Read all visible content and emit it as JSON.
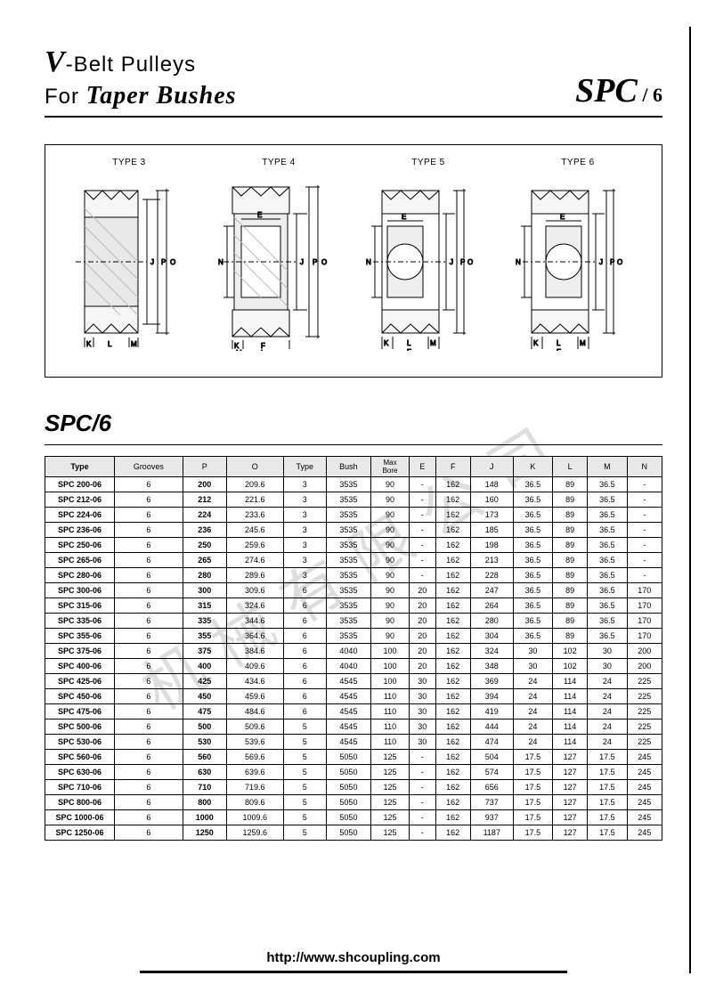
{
  "header": {
    "title_line1_prefix": "V",
    "title_line1_rest": "-Belt Pulleys",
    "title_line2_prefix": "For ",
    "title_line2_italic": "Taper Bushes",
    "right_spc": "SPC",
    "right_suffix": " / 6"
  },
  "diagram_labels": [
    "TYPE 3",
    "TYPE 4",
    "TYPE 5",
    "TYPE 6"
  ],
  "section_title": "SPC/6",
  "table": {
    "headers": [
      "Type",
      "Grooves",
      "P",
      "O",
      "Type",
      "Bush",
      "Max Bore",
      "E",
      "F",
      "J",
      "K",
      "L",
      "M",
      "N"
    ],
    "col_count": 14,
    "header_bg": "#e8e8e8",
    "border_color": "#000000",
    "font_size": 9,
    "rows": [
      [
        "SPC 200-06",
        "6",
        "200",
        "209.6",
        "3",
        "3535",
        "90",
        "-",
        "162",
        "148",
        "36.5",
        "89",
        "36.5",
        "-"
      ],
      [
        "SPC 212-06",
        "6",
        "212",
        "221.6",
        "3",
        "3535",
        "90",
        "-",
        "162",
        "160",
        "36.5",
        "89",
        "36.5",
        "-"
      ],
      [
        "SPC 224-06",
        "6",
        "224",
        "233.6",
        "3",
        "3535",
        "90",
        "-",
        "162",
        "173",
        "36.5",
        "89",
        "36.5",
        "-"
      ],
      [
        "SPC 236-06",
        "6",
        "236",
        "245.6",
        "3",
        "3535",
        "90",
        "-",
        "162",
        "185",
        "36.5",
        "89",
        "36.5",
        "-"
      ],
      [
        "SPC 250-06",
        "6",
        "250",
        "259.6",
        "3",
        "3535",
        "90",
        "-",
        "162",
        "198",
        "36.5",
        "89",
        "36.5",
        "-"
      ],
      [
        "SPC 265-06",
        "6",
        "265",
        "274.6",
        "3",
        "3535",
        "90",
        "-",
        "162",
        "213",
        "36.5",
        "89",
        "36.5",
        "-"
      ],
      [
        "SPC 280-06",
        "6",
        "280",
        "289.6",
        "3",
        "3535",
        "90",
        "-",
        "162",
        "228",
        "36.5",
        "89",
        "36.5",
        "-"
      ],
      [
        "SPC 300-06",
        "6",
        "300",
        "309.6",
        "6",
        "3535",
        "90",
        "20",
        "162",
        "247",
        "36.5",
        "89",
        "36.5",
        "170"
      ],
      [
        "SPC 315-06",
        "6",
        "315",
        "324.6",
        "6",
        "3535",
        "90",
        "20",
        "162",
        "264",
        "36.5",
        "89",
        "36.5",
        "170"
      ],
      [
        "SPC 335-06",
        "6",
        "335",
        "344.6",
        "6",
        "3535",
        "90",
        "20",
        "162",
        "280",
        "36.5",
        "89",
        "36.5",
        "170"
      ],
      [
        "SPC 355-06",
        "6",
        "355",
        "364.6",
        "6",
        "3535",
        "90",
        "20",
        "162",
        "304",
        "36.5",
        "89",
        "36.5",
        "170"
      ],
      [
        "SPC 375-06",
        "6",
        "375",
        "384.6",
        "6",
        "4040",
        "100",
        "20",
        "162",
        "324",
        "30",
        "102",
        "30",
        "200"
      ],
      [
        "SPC 400-06",
        "6",
        "400",
        "409.6",
        "6",
        "4040",
        "100",
        "20",
        "162",
        "348",
        "30",
        "102",
        "30",
        "200"
      ],
      [
        "SPC 425-06",
        "6",
        "425",
        "434.6",
        "6",
        "4545",
        "100",
        "30",
        "162",
        "369",
        "24",
        "114",
        "24",
        "225"
      ],
      [
        "SPC 450-06",
        "6",
        "450",
        "459.6",
        "6",
        "4545",
        "110",
        "30",
        "162",
        "394",
        "24",
        "114",
        "24",
        "225"
      ],
      [
        "SPC 475-06",
        "6",
        "475",
        "484.6",
        "6",
        "4545",
        "110",
        "30",
        "162",
        "419",
        "24",
        "114",
        "24",
        "225"
      ],
      [
        "SPC 500-06",
        "6",
        "500",
        "509.6",
        "5",
        "4545",
        "110",
        "30",
        "162",
        "444",
        "24",
        "114",
        "24",
        "225"
      ],
      [
        "SPC 530-06",
        "6",
        "530",
        "539.6",
        "5",
        "4545",
        "110",
        "30",
        "162",
        "474",
        "24",
        "114",
        "24",
        "225"
      ],
      [
        "SPC 560-06",
        "6",
        "560",
        "569.6",
        "5",
        "5050",
        "125",
        "-",
        "162",
        "504",
        "17.5",
        "127",
        "17.5",
        "245"
      ],
      [
        "SPC 630-06",
        "6",
        "630",
        "639.6",
        "5",
        "5050",
        "125",
        "-",
        "162",
        "574",
        "17.5",
        "127",
        "17.5",
        "245"
      ],
      [
        "SPC 710-06",
        "6",
        "710",
        "719.6",
        "5",
        "5050",
        "125",
        "-",
        "162",
        "656",
        "17.5",
        "127",
        "17.5",
        "245"
      ],
      [
        "SPC 800-06",
        "6",
        "800",
        "809.6",
        "5",
        "5050",
        "125",
        "-",
        "162",
        "737",
        "17.5",
        "127",
        "17.5",
        "245"
      ],
      [
        "SPC 1000-06",
        "6",
        "1000",
        "1009.6",
        "5",
        "5050",
        "125",
        "-",
        "162",
        "937",
        "17.5",
        "127",
        "17.5",
        "245"
      ],
      [
        "SPC 1250-06",
        "6",
        "1250",
        "1259.6",
        "5",
        "5050",
        "125",
        "-",
        "162",
        "1187",
        "17.5",
        "127",
        "17.5",
        "245"
      ]
    ]
  },
  "footer": {
    "url": "http://www.shcoupling.com"
  },
  "diagram_style": {
    "stroke": "#000000",
    "fill_hatch": "#d0d0d0",
    "stroke_width": 1
  }
}
